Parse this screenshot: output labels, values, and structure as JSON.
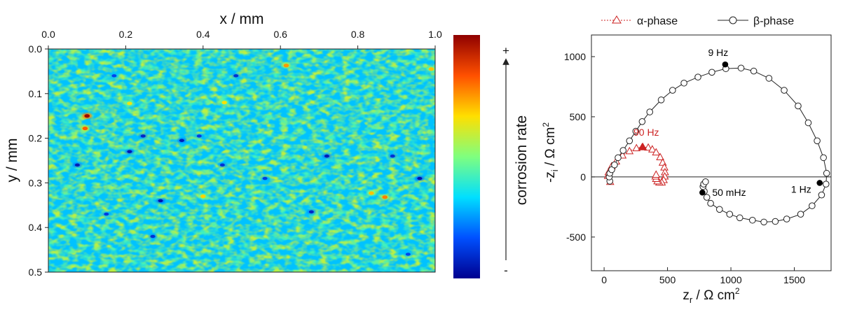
{
  "chart_data": [
    {
      "type": "heatmap",
      "xlabel": "x / mm",
      "ylabel": "y / mm",
      "xlim": [
        0.0,
        1.0
      ],
      "ylim": [
        0.0,
        0.5
      ],
      "x_ticks": [
        "0.0",
        "0.2",
        "0.4",
        "0.6",
        "0.8",
        "1.0"
      ],
      "y_ticks": [
        "0.0",
        "0.1",
        "0.2",
        "0.3",
        "0.4",
        "0.5"
      ],
      "x_axis_position": "top",
      "y_axis_inverted": true,
      "colormap": "jet",
      "colorbar_label": "corrosion rate",
      "colorbar_top": "+",
      "colorbar_bottom": "-",
      "colors": [
        "#00008f",
        "#0050ff",
        "#00dfff",
        "#7fff7f",
        "#ffdf00",
        "#ff5000",
        "#8f0000"
      ],
      "background_level": 0.42,
      "hot_spots": [
        {
          "x": 0.1,
          "y": 0.15,
          "level": 0.98
        },
        {
          "x": 0.095,
          "y": 0.178,
          "level": 0.82
        },
        {
          "x": 0.615,
          "y": 0.037,
          "level": 0.75
        },
        {
          "x": 0.87,
          "y": 0.332,
          "level": 0.78
        },
        {
          "x": 0.835,
          "y": 0.323,
          "level": 0.7
        },
        {
          "x": 0.4,
          "y": 0.33,
          "level": 0.68
        },
        {
          "x": 0.455,
          "y": 0.12,
          "level": 0.66
        },
        {
          "x": 0.21,
          "y": 0.122,
          "level": 0.64
        },
        {
          "x": 0.99,
          "y": 0.045,
          "level": 0.7
        }
      ],
      "cold_spots": [
        {
          "x": 0.075,
          "y": 0.26,
          "level": 0.06
        },
        {
          "x": 0.21,
          "y": 0.23,
          "level": 0.05
        },
        {
          "x": 0.29,
          "y": 0.34,
          "level": 0.04
        },
        {
          "x": 0.27,
          "y": 0.42,
          "level": 0.1
        },
        {
          "x": 0.245,
          "y": 0.195,
          "level": 0.08
        },
        {
          "x": 0.345,
          "y": 0.205,
          "level": 0.06
        },
        {
          "x": 0.39,
          "y": 0.195,
          "level": 0.12
        },
        {
          "x": 0.485,
          "y": 0.06,
          "level": 0.1
        },
        {
          "x": 0.68,
          "y": 0.365,
          "level": 0.08
        },
        {
          "x": 0.72,
          "y": 0.24,
          "level": 0.06
        },
        {
          "x": 0.89,
          "y": 0.24,
          "level": 0.1
        },
        {
          "x": 0.96,
          "y": 0.29,
          "level": 0.04
        },
        {
          "x": 0.15,
          "y": 0.37,
          "level": 0.12
        },
        {
          "x": 0.56,
          "y": 0.29,
          "level": 0.12
        },
        {
          "x": 0.17,
          "y": 0.06,
          "level": 0.14
        },
        {
          "x": 0.93,
          "y": 0.46,
          "level": 0.14
        },
        {
          "x": 0.45,
          "y": 0.26,
          "level": 0.1
        }
      ]
    },
    {
      "type": "scatter",
      "xlabel": "z",
      "xlabel_sub": "r",
      "xlabel_unit": " / Ω cm",
      "xlabel_sup": "2",
      "ylabel": "-z",
      "ylabel_sub": "i",
      "ylabel_unit": " / Ω cm",
      "ylabel_sup": "2",
      "xlim": [
        -100,
        1790
      ],
      "ylim": [
        -780,
        1180
      ],
      "x_ticks": [
        0,
        500,
        1000,
        1500
      ],
      "y_ticks": [
        -500,
        0,
        500,
        1000
      ],
      "zero_line": true,
      "legend_position": "top",
      "series": [
        {
          "name": "α-phase",
          "color": "#cc2222",
          "marker": "triangle",
          "line": "dotted",
          "x": [
            48,
            30,
            35,
            60,
            95,
            145,
            200,
            255,
            300,
            348,
            380,
            410,
            442,
            462,
            475,
            480,
            478,
            470,
            455,
            435,
            420,
            410,
            405,
            410
          ],
          "y": [
            -40,
            10,
            40,
            90,
            130,
            180,
            215,
            240,
            248,
            245,
            230,
            205,
            165,
            120,
            80,
            40,
            5,
            -25,
            -45,
            -45,
            -35,
            -15,
            5,
            20
          ]
        },
        {
          "name": "β-phase",
          "color": "#222222",
          "marker": "circle",
          "line": "solid",
          "x": [
            45,
            40,
            45,
            60,
            82,
            110,
            150,
            200,
            250,
            300,
            360,
            450,
            540,
            630,
            740,
            850,
            960,
            1080,
            1180,
            1300,
            1420,
            1530,
            1610,
            1680,
            1730,
            1755,
            1750,
            1715,
            1640,
            1550,
            1440,
            1350,
            1260,
            1170,
            1070,
            990,
            910,
            840,
            810,
            790,
            780,
            785,
            800
          ],
          "y": [
            -35,
            0,
            30,
            60,
            100,
            160,
            220,
            300,
            380,
            460,
            540,
            640,
            720,
            780,
            830,
            870,
            900,
            905,
            880,
            820,
            720,
            590,
            450,
            300,
            160,
            30,
            -60,
            -150,
            -240,
            -310,
            -350,
            -370,
            -375,
            -360,
            -340,
            -310,
            -270,
            -220,
            -170,
            -120,
            -80,
            -60,
            -40
          ]
        }
      ],
      "highlighted_points": [
        {
          "label": "9 Hz",
          "x": 955,
          "y": 935,
          "color": "#000000"
        },
        {
          "label": "1 Hz",
          "x": 1700,
          "y": -50,
          "color": "#000000"
        },
        {
          "label": "50 mHz",
          "x": 775,
          "y": -130,
          "color": "#000000"
        },
        {
          "label": "90 Hz",
          "x": 305,
          "y": 250,
          "color": "#cc2222"
        }
      ]
    }
  ]
}
